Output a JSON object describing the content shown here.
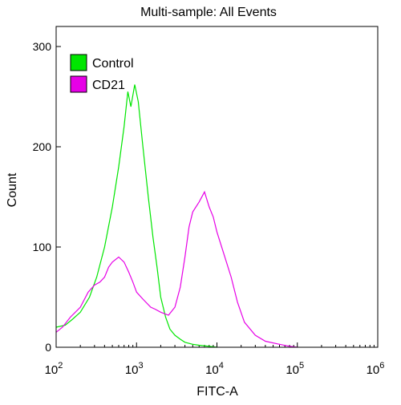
{
  "chart_data": {
    "type": "histogram",
    "title": "Multi-sample: All Events",
    "xlabel": "FITC-A",
    "ylabel": "Count",
    "xscale": "log",
    "xlim": [
      100,
      1000000
    ],
    "ylim": [
      0,
      320
    ],
    "x_ticks": [
      {
        "base": "10",
        "exp": "2"
      },
      {
        "base": "10",
        "exp": "3"
      },
      {
        "base": "10",
        "exp": "4"
      },
      {
        "base": "10",
        "exp": "5"
      },
      {
        "base": "10",
        "exp": "6"
      }
    ],
    "y_ticks": [
      0,
      100,
      200,
      300
    ],
    "legend_position": "top-left",
    "series": [
      {
        "name": "Control",
        "color": "#00e600",
        "points": [
          [
            100,
            20
          ],
          [
            130,
            22
          ],
          [
            160,
            28
          ],
          [
            200,
            35
          ],
          [
            260,
            50
          ],
          [
            320,
            70
          ],
          [
            400,
            100
          ],
          [
            500,
            140
          ],
          [
            600,
            180
          ],
          [
            700,
            220
          ],
          [
            780,
            255
          ],
          [
            850,
            240
          ],
          [
            950,
            262
          ],
          [
            1050,
            245
          ],
          [
            1200,
            200
          ],
          [
            1400,
            150
          ],
          [
            1600,
            110
          ],
          [
            1800,
            80
          ],
          [
            2000,
            50
          ],
          [
            2300,
            30
          ],
          [
            2600,
            18
          ],
          [
            3000,
            12
          ],
          [
            3500,
            8
          ],
          [
            4000,
            5
          ],
          [
            5000,
            3
          ],
          [
            6000,
            2
          ],
          [
            8000,
            1
          ],
          [
            10000,
            0
          ]
        ]
      },
      {
        "name": "CD21",
        "color": "#e600e6",
        "points": [
          [
            100,
            15
          ],
          [
            120,
            20
          ],
          [
            150,
            30
          ],
          [
            200,
            40
          ],
          [
            250,
            55
          ],
          [
            300,
            62
          ],
          [
            350,
            65
          ],
          [
            400,
            70
          ],
          [
            450,
            80
          ],
          [
            500,
            85
          ],
          [
            600,
            90
          ],
          [
            700,
            85
          ],
          [
            800,
            75
          ],
          [
            900,
            65
          ],
          [
            1000,
            55
          ],
          [
            1200,
            48
          ],
          [
            1500,
            40
          ],
          [
            1700,
            38
          ],
          [
            2000,
            35
          ],
          [
            2500,
            32
          ],
          [
            3000,
            40
          ],
          [
            3500,
            60
          ],
          [
            4000,
            90
          ],
          [
            4500,
            120
          ],
          [
            5000,
            135
          ],
          [
            6000,
            145
          ],
          [
            7000,
            155
          ],
          [
            8000,
            140
          ],
          [
            9000,
            130
          ],
          [
            10000,
            115
          ],
          [
            12000,
            95
          ],
          [
            15000,
            70
          ],
          [
            18000,
            45
          ],
          [
            22000,
            25
          ],
          [
            30000,
            12
          ],
          [
            40000,
            6
          ],
          [
            60000,
            3
          ],
          [
            80000,
            1
          ],
          [
            100000,
            0
          ]
        ]
      }
    ]
  }
}
